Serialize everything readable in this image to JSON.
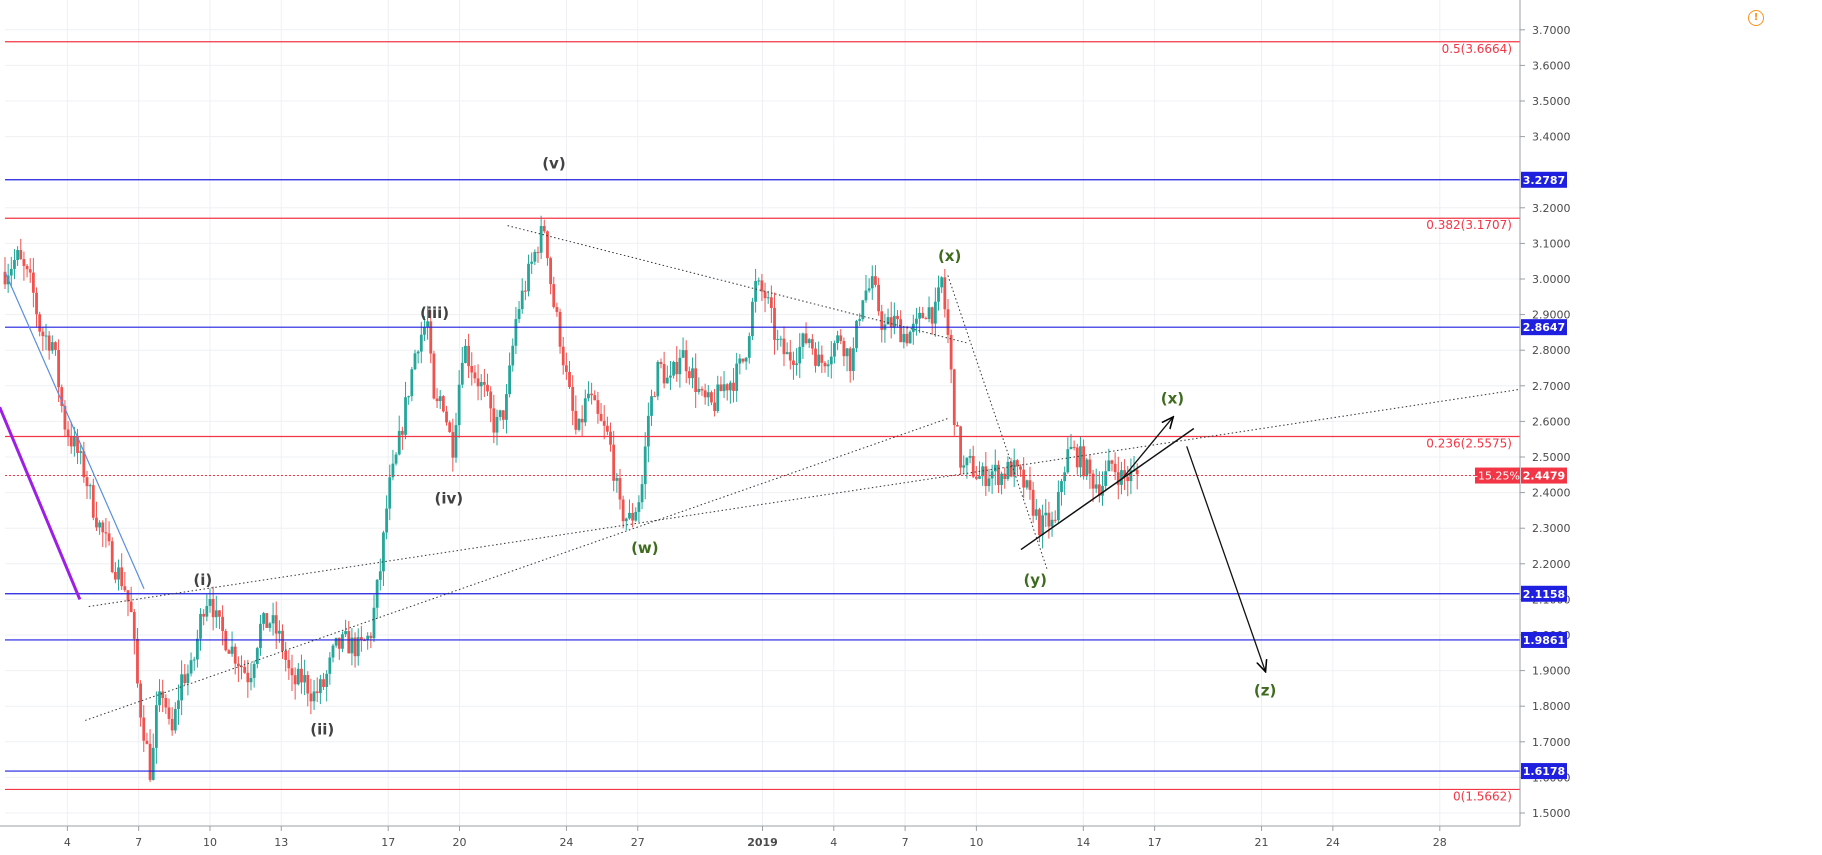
{
  "icons": {
    "alert": "!"
  },
  "colors": {
    "fib": "#f23645",
    "level": "#1f1fe0",
    "price_badge": "#f23645",
    "wave_dark": "#424242",
    "wave_green": "#3f6b1f",
    "trend_blue": "#5a8fdc",
    "purple": "#9d1fe6",
    "candle_up": "#26a69a",
    "candle_down": "#ef5350"
  },
  "chart_data": {
    "type": "candlestick",
    "ylim": [
      1.47,
      3.78
    ],
    "yticks": [
      "1.5000",
      "1.6000",
      "1.7000",
      "1.8000",
      "1.9000",
      "2.0000",
      "2.1000",
      "2.2000",
      "2.3000",
      "2.4000",
      "2.5000",
      "2.6000",
      "2.7000",
      "2.8000",
      "2.9000",
      "3.0000",
      "3.1000",
      "3.2000",
      "3.4000",
      "3.5000",
      "3.6000",
      "3.7000"
    ],
    "xlim": [
      0.05,
      8.55
    ],
    "xticks": [
      {
        "label": "4",
        "x": 0.4
      },
      {
        "label": "7",
        "x": 0.8
      },
      {
        "label": "10",
        "x": 1.2
      },
      {
        "label": "13",
        "x": 1.6
      },
      {
        "label": "17",
        "x": 2.2
      },
      {
        "label": "20",
        "x": 2.6
      },
      {
        "label": "24",
        "x": 3.2
      },
      {
        "label": "27",
        "x": 3.6
      },
      {
        "label": "2019",
        "x": 4.3
      },
      {
        "label": "4",
        "x": 4.7
      },
      {
        "label": "7",
        "x": 5.1
      },
      {
        "label": "10",
        "x": 5.5
      },
      {
        "label": "14",
        "x": 6.1
      },
      {
        "label": "17",
        "x": 6.5
      },
      {
        "label": "21",
        "x": 7.1
      },
      {
        "label": "24",
        "x": 7.5
      },
      {
        "label": "28",
        "x": 8.1
      }
    ],
    "fib_levels": [
      {
        "value": 3.6664,
        "label": "0.5(3.6664)"
      },
      {
        "value": 3.1707,
        "label": "0.382(3.1707)"
      },
      {
        "value": 2.5575,
        "label": "0.236(2.5575)"
      },
      {
        "value": 1.5662,
        "label": "0(1.5662)"
      }
    ],
    "levels": [
      {
        "value": 3.2787,
        "label": "3.2787"
      },
      {
        "value": 2.8647,
        "label": "2.8647"
      },
      {
        "value": 2.1158,
        "label": "2.1158"
      },
      {
        "value": 1.9861,
        "label": "1.9861"
      },
      {
        "value": 1.6178,
        "label": "1.6178"
      }
    ],
    "current_price": {
      "value": 2.4479,
      "label": "2.4479",
      "change": "-15.25%"
    },
    "price_path": [
      [
        0.05,
        3.02
      ],
      [
        0.12,
        3.06
      ],
      [
        0.2,
        2.98
      ],
      [
        0.25,
        2.85
      ],
      [
        0.32,
        2.82
      ],
      [
        0.38,
        2.6
      ],
      [
        0.42,
        2.55
      ],
      [
        0.45,
        2.52
      ],
      [
        0.5,
        2.45
      ],
      [
        0.55,
        2.35
      ],
      [
        0.6,
        2.28
      ],
      [
        0.66,
        2.2
      ],
      [
        0.72,
        2.14
      ],
      [
        0.76,
        2.05
      ],
      [
        0.8,
        1.82
      ],
      [
        0.84,
        1.7
      ],
      [
        0.87,
        1.6
      ],
      [
        0.9,
        1.78
      ],
      [
        0.94,
        1.85
      ],
      [
        0.98,
        1.7
      ],
      [
        1.04,
        1.88
      ],
      [
        1.1,
        1.9
      ],
      [
        1.16,
        2.08
      ],
      [
        1.2,
        2.12
      ],
      [
        1.24,
        2.03
      ],
      [
        1.3,
        1.98
      ],
      [
        1.36,
        1.93
      ],
      [
        1.42,
        1.88
      ],
      [
        1.48,
        2.02
      ],
      [
        1.54,
        2.04
      ],
      [
        1.6,
        1.98
      ],
      [
        1.66,
        1.86
      ],
      [
        1.72,
        1.88
      ],
      [
        1.78,
        1.83
      ],
      [
        1.84,
        1.86
      ],
      [
        1.9,
        1.96
      ],
      [
        1.96,
        1.98
      ],
      [
        2.04,
        1.96
      ],
      [
        2.1,
        2.0
      ],
      [
        2.16,
        2.2
      ],
      [
        2.2,
        2.4
      ],
      [
        2.24,
        2.48
      ],
      [
        2.3,
        2.65
      ],
      [
        2.36,
        2.82
      ],
      [
        2.42,
        2.88
      ],
      [
        2.46,
        2.62
      ],
      [
        2.5,
        2.68
      ],
      [
        2.56,
        2.52
      ],
      [
        2.62,
        2.82
      ],
      [
        2.68,
        2.74
      ],
      [
        2.74,
        2.68
      ],
      [
        2.8,
        2.58
      ],
      [
        2.86,
        2.64
      ],
      [
        2.92,
        2.9
      ],
      [
        2.98,
        3.0
      ],
      [
        3.04,
        3.1
      ],
      [
        3.08,
        3.15
      ],
      [
        3.12,
        2.95
      ],
      [
        3.16,
        2.85
      ],
      [
        3.2,
        2.72
      ],
      [
        3.26,
        2.55
      ],
      [
        3.32,
        2.68
      ],
      [
        3.38,
        2.6
      ],
      [
        3.44,
        2.55
      ],
      [
        3.5,
        2.35
      ],
      [
        3.56,
        2.32
      ],
      [
        3.62,
        2.4
      ],
      [
        3.66,
        2.62
      ],
      [
        3.72,
        2.76
      ],
      [
        3.78,
        2.7
      ],
      [
        3.84,
        2.8
      ],
      [
        3.9,
        2.74
      ],
      [
        3.96,
        2.66
      ],
      [
        4.02,
        2.64
      ],
      [
        4.08,
        2.7
      ],
      [
        4.14,
        2.72
      ],
      [
        4.2,
        2.78
      ],
      [
        4.26,
        2.98
      ],
      [
        4.32,
        2.95
      ],
      [
        4.38,
        2.82
      ],
      [
        4.44,
        2.78
      ],
      [
        4.5,
        2.8
      ],
      [
        4.56,
        2.84
      ],
      [
        4.62,
        2.76
      ],
      [
        4.68,
        2.8
      ],
      [
        4.74,
        2.84
      ],
      [
        4.8,
        2.76
      ],
      [
        4.86,
        2.96
      ],
      [
        4.92,
        2.98
      ],
      [
        4.98,
        2.86
      ],
      [
        5.04,
        2.88
      ],
      [
        5.1,
        2.84
      ],
      [
        5.16,
        2.86
      ],
      [
        5.22,
        2.92
      ],
      [
        5.28,
        2.9
      ],
      [
        5.3,
        3.02
      ],
      [
        5.34,
        2.84
      ],
      [
        5.38,
        2.6
      ],
      [
        5.42,
        2.46
      ],
      [
        5.46,
        2.48
      ],
      [
        5.52,
        2.44
      ],
      [
        5.58,
        2.46
      ],
      [
        5.64,
        2.45
      ],
      [
        5.7,
        2.47
      ],
      [
        5.76,
        2.43
      ],
      [
        5.82,
        2.36
      ],
      [
        5.86,
        2.3
      ],
      [
        5.9,
        2.32
      ],
      [
        5.94,
        2.3
      ],
      [
        5.98,
        2.45
      ],
      [
        6.02,
        2.52
      ],
      [
        6.08,
        2.5
      ],
      [
        6.14,
        2.44
      ],
      [
        6.2,
        2.42
      ],
      [
        6.26,
        2.48
      ],
      [
        6.32,
        2.44
      ],
      [
        6.38,
        2.45
      ],
      [
        6.42,
        2.4479
      ]
    ],
    "lines": [
      {
        "style": "dotted",
        "from": [
          2.87,
          3.15
        ],
        "to": [
          5.45,
          2.82
        ]
      },
      {
        "style": "dotted",
        "from": [
          0.5,
          1.76
        ],
        "to": [
          5.35,
          2.61
        ]
      },
      {
        "style": "dotted",
        "from": [
          0.52,
          2.08
        ],
        "to": [
          8.55,
          2.69
        ]
      },
      {
        "style": "dotted",
        "from": [
          5.34,
          3.01
        ],
        "to": [
          5.9,
          2.18
        ]
      },
      {
        "style": "solid",
        "color": "trend_blue",
        "from": [
          0.05,
          3.02
        ],
        "to": [
          0.83,
          2.13
        ]
      },
      {
        "style": "solid",
        "color": "purple",
        "from": [
          0.02,
          2.64
        ],
        "to": [
          0.47,
          2.1
        ]
      },
      {
        "style": "solid",
        "from": [
          5.75,
          2.24
        ],
        "to": [
          6.72,
          2.58
        ]
      },
      {
        "style": "arrow",
        "from": [
          6.32,
          2.44
        ],
        "to": [
          6.6,
          2.61
        ]
      },
      {
        "style": "arrow",
        "from": [
          6.68,
          2.53
        ],
        "to": [
          7.12,
          1.9
        ]
      }
    ],
    "wave_labels": [
      {
        "text": "(v)",
        "x": 3.13,
        "y": 3.31,
        "color": "wave_dark"
      },
      {
        "text": "(iii)",
        "x": 2.46,
        "y": 2.89,
        "color": "wave_dark"
      },
      {
        "text": "(iv)",
        "x": 2.54,
        "y": 2.37,
        "color": "wave_dark"
      },
      {
        "text": "(i)",
        "x": 1.16,
        "y": 2.14,
        "color": "wave_dark"
      },
      {
        "text": "(ii)",
        "x": 1.83,
        "y": 1.72,
        "color": "wave_dark"
      },
      {
        "text": "(w)",
        "x": 3.64,
        "y": 2.23,
        "color": "wave_green"
      },
      {
        "text": "(x)",
        "x": 5.35,
        "y": 3.05,
        "color": "wave_green"
      },
      {
        "text": "(y)",
        "x": 5.83,
        "y": 2.14,
        "color": "wave_green"
      },
      {
        "text": "(x)",
        "x": 6.6,
        "y": 2.65,
        "color": "wave_green"
      },
      {
        "text": "(z)",
        "x": 7.12,
        "y": 1.83,
        "color": "wave_green"
      }
    ]
  }
}
